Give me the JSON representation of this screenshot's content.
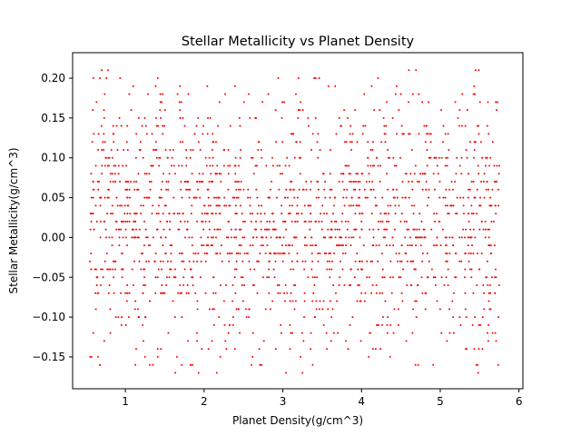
{
  "chart_data": {
    "type": "scatter",
    "title": "Stellar Metallicity vs Planet Density",
    "xlabel": "Planet Density(g/cm^3)",
    "ylabel": "Stellar Metallicity(g/cm^3)",
    "xlim": [
      0.33,
      6.05
    ],
    "ylim": [
      -0.19,
      0.232
    ],
    "xticks": [
      1,
      2,
      3,
      4,
      5,
      6
    ],
    "xtick_labels": [
      "1",
      "2",
      "3",
      "4",
      "5",
      "6"
    ],
    "yticks": [
      -0.15,
      -0.1,
      -0.05,
      0.0,
      0.05,
      0.1,
      0.15,
      0.2
    ],
    "ytick_labels": [
      "−0.15",
      "−0.10",
      "−0.05",
      "0.00",
      "0.05",
      "0.10",
      "0.15",
      "0.20"
    ],
    "grid": false,
    "marker_color": "#ff0000",
    "point_count_approx": 1800,
    "x_range_observed": [
      0.55,
      5.75
    ],
    "y_range_observed": [
      -0.17,
      0.21
    ],
    "y_value_step": 0.01,
    "x": [
      0.58,
      0.63,
      0.7,
      0.74,
      0.81,
      0.88,
      0.95,
      1.02,
      1.1,
      1.17,
      1.25,
      1.33,
      1.4,
      1.48,
      1.56,
      1.63,
      1.71,
      1.79,
      1.86,
      1.94,
      2.02,
      2.1,
      2.18,
      2.25,
      2.33,
      2.41,
      2.49,
      2.57,
      2.65,
      2.72,
      2.8,
      2.88,
      2.96,
      3.04,
      3.12,
      3.2,
      3.28,
      3.36,
      3.44,
      3.52,
      3.6,
      3.68,
      3.76,
      3.84,
      3.92,
      4.0,
      4.08,
      4.16,
      4.24,
      4.32,
      4.4,
      4.48,
      4.56,
      4.64,
      4.72,
      4.8,
      4.88,
      4.96,
      5.04,
      5.12,
      5.2,
      5.28,
      5.36,
      5.44,
      5.52,
      5.6,
      5.68,
      5.74,
      0.62,
      1.05,
      1.52,
      2.11,
      2.66,
      3.25,
      3.81,
      4.37,
      4.93,
      5.49,
      0.77,
      1.31,
      1.88,
      2.44,
      3.03,
      3.58,
      4.15,
      4.71,
      5.27,
      5.71
    ],
    "y": [
      0.12,
      -0.04,
      0.21,
      0.05,
      -0.12,
      0.02,
      0.14,
      -0.08,
      0.19,
      0.0,
      -0.15,
      0.07,
      0.1,
      -0.03,
      0.03,
      -0.1,
      0.17,
      0.01,
      -0.06,
      0.08,
      0.02,
      -0.13,
      0.04,
      0.11,
      -0.02,
      0.06,
      0.0,
      -0.09,
      0.15,
      0.03,
      -0.05,
      0.01,
      0.09,
      -0.17,
      0.04,
      0.2,
      -0.01,
      0.02,
      0.07,
      -0.11,
      0.05,
      0.13,
      -0.04,
      0.0,
      0.03,
      -0.07,
      0.1,
      0.16,
      -0.14,
      0.02,
      0.06,
      -0.02,
      0.08,
      0.04,
      -0.16,
      0.01,
      0.12,
      -0.08,
      0.05,
      0.0,
      -0.05,
      0.18,
      0.03,
      -0.1,
      0.07,
      -0.12,
      0.02,
      0.04,
      -0.07,
      0.18,
      -0.06,
      0.09,
      0.01,
      -0.17,
      0.12,
      -0.03,
      0.06,
      0.21,
      0.03,
      -0.16,
      0.13,
      -0.09,
      0.05,
      0.19,
      -0.01,
      -0.06,
      0.08,
      -0.13
    ]
  }
}
